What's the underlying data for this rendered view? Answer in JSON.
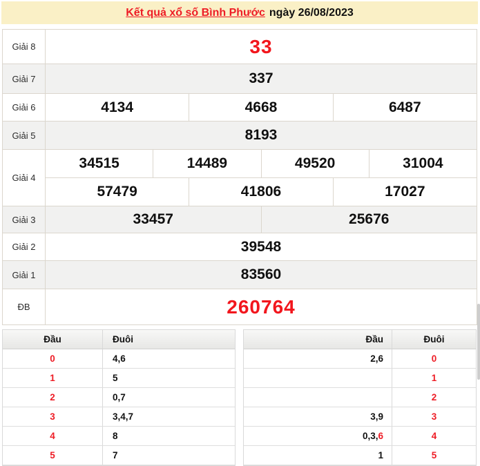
{
  "page": {
    "title_link": "Kết quả xổ số Bình Phước",
    "title_date": "ngày 26/08/2023"
  },
  "colors": {
    "header_bg": "#faf0c6",
    "accent_red": "#ee1c25",
    "big_number_red": "#f2161d",
    "row_alt_bg": "#f1f1f0",
    "table_border": "#dbd6cd"
  },
  "results": {
    "rows": [
      {
        "label": "Giải 8",
        "values": [
          "33"
        ]
      },
      {
        "label": "Giải 7",
        "values": [
          "337"
        ]
      },
      {
        "label": "Giải 6",
        "values": [
          "4134",
          "4668",
          "6487"
        ]
      },
      {
        "label": "Giải 5",
        "values": [
          "8193"
        ]
      },
      {
        "label": "Giải 4",
        "line1": [
          "34515",
          "14489",
          "49520",
          "31004"
        ],
        "line2": [
          "57479",
          "41806",
          "17027"
        ]
      },
      {
        "label": "Giải 3",
        "values": [
          "33457",
          "25676"
        ]
      },
      {
        "label": "Giải 2",
        "values": [
          "39548"
        ]
      },
      {
        "label": "Giải 1",
        "values": [
          "83560"
        ]
      },
      {
        "label": "ĐB",
        "values": [
          "260764"
        ]
      }
    ]
  },
  "head_tail_left": {
    "dau_header": "Đầu",
    "duoi_header": "Đuôi",
    "rows": [
      {
        "dau": "0",
        "duoi": "4,6"
      },
      {
        "dau": "1",
        "duoi": "5"
      },
      {
        "dau": "2",
        "duoi": "0,7"
      },
      {
        "dau": "3",
        "duoi": "3,4,7"
      },
      {
        "dau": "4",
        "duoi": "8"
      },
      {
        "dau": "5",
        "duoi": "7"
      }
    ]
  },
  "head_tail_right": {
    "dau_header": "Đầu",
    "duoi_header": "Đuôi",
    "rows": [
      {
        "dau": "2,6",
        "dau_red": "",
        "duoi": "0"
      },
      {
        "dau": "",
        "dau_red": "",
        "duoi": "1"
      },
      {
        "dau": "",
        "dau_red": "",
        "duoi": "2"
      },
      {
        "dau": "3,9",
        "dau_red": "",
        "duoi": "3"
      },
      {
        "dau": "0,3,",
        "dau_red": "6",
        "duoi": "4"
      },
      {
        "dau": "1",
        "dau_red": "",
        "duoi": "5"
      }
    ]
  }
}
